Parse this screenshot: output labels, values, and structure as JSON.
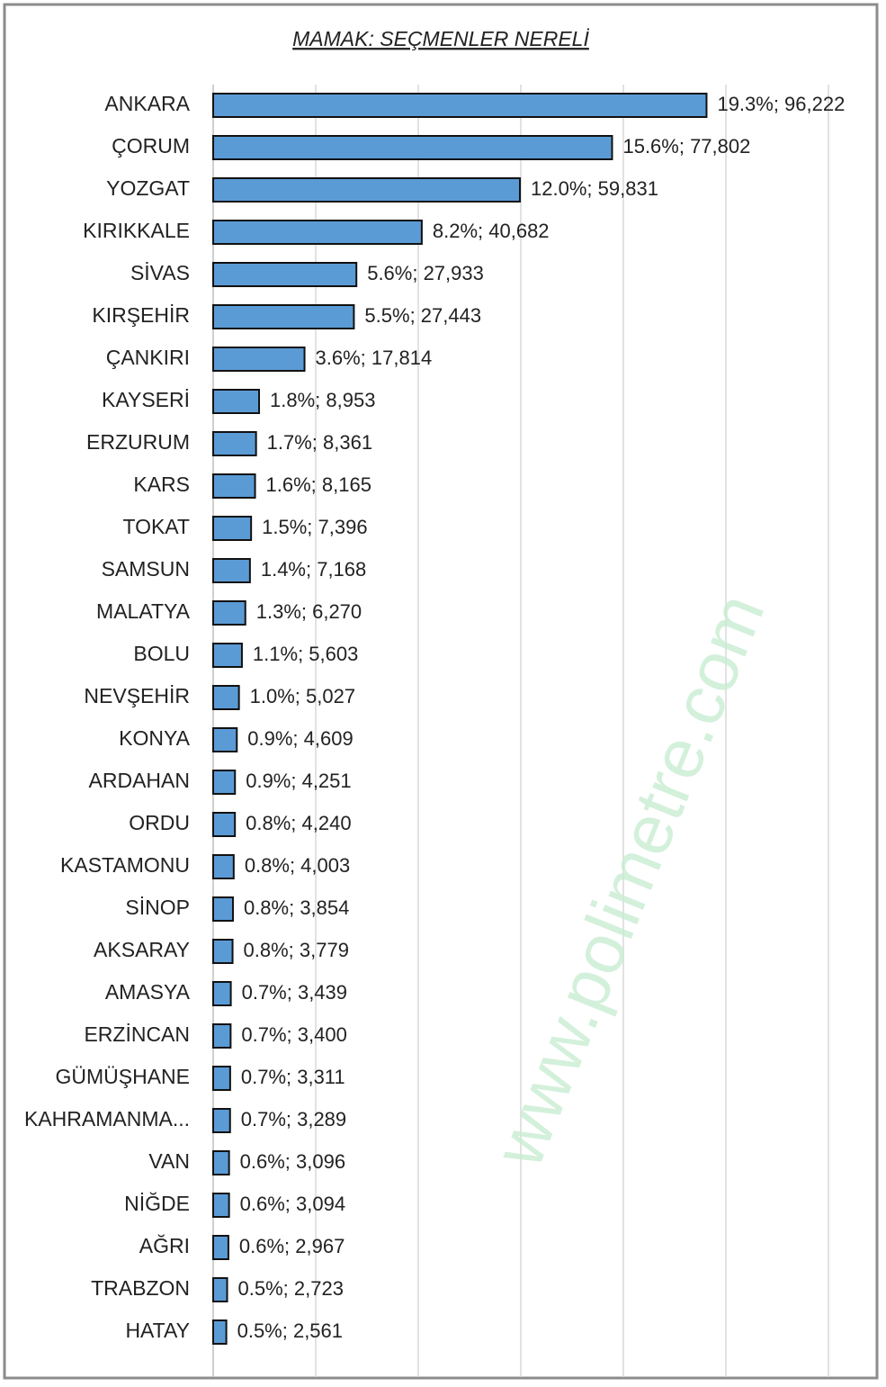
{
  "chart_data": {
    "type": "barh",
    "title": "MAMAK: SEÇMENLER NERELİ",
    "watermark": "www.polimetre.com",
    "categories": [
      "ANKARA",
      "ÇORUM",
      "YOZGAT",
      "KIRIKKALE",
      "SİVAS",
      "KIRŞEHİR",
      "ÇANKIRI",
      "KAYSERİ",
      "ERZURUM",
      "KARS",
      "TOKAT",
      "SAMSUN",
      "MALATYA",
      "BOLU",
      "NEVŞEHİR",
      "KONYA",
      "ARDAHAN",
      "ORDU",
      "KASTAMONU",
      "SİNOP",
      "AKSARAY",
      "AMASYA",
      "ERZİNCAN",
      "GÜMÜŞHANE",
      "KAHRAMANMA...",
      "VAN",
      "NİĞDE",
      "AĞRI",
      "TRABZON",
      "HATAY"
    ],
    "values": [
      96222,
      77802,
      59831,
      40682,
      27933,
      27443,
      17814,
      8953,
      8361,
      8165,
      7396,
      7168,
      6270,
      5603,
      5027,
      4609,
      4251,
      4240,
      4003,
      3854,
      3779,
      3439,
      3400,
      3311,
      3289,
      3096,
      3094,
      2967,
      2723,
      2561
    ],
    "value_labels": [
      "19.3%; 96,222",
      "15.6%; 77,802",
      "12.0%; 59,831",
      "8.2%; 40,682",
      "5.6%; 27,933",
      "5.5%; 27,443",
      "3.6%; 17,814",
      "1.8%; 8,953",
      "1.7%; 8,361",
      "1.6%; 8,165",
      "1.5%; 7,396",
      "1.4%; 7,168",
      "1.3%; 6,270",
      "1.1%; 5,603",
      "1.0%; 5,027",
      "0.9%; 4,609",
      "0.9%; 4,251",
      "0.8%; 4,240",
      "0.8%; 4,003",
      "0.8%; 3,854",
      "0.8%; 3,779",
      "0.7%; 3,439",
      "0.7%; 3,400",
      "0.7%; 3,311",
      "0.7%; 3,289",
      "0.6%; 3,096",
      "0.6%; 3,094",
      "0.6%; 2,967",
      "0.5%; 2,723",
      "0.5%; 2,561"
    ],
    "color": "#5b9bd5",
    "xlim": [
      0,
      120000
    ],
    "xticks": [
      0,
      20000,
      40000,
      60000,
      80000,
      100000,
      120000
    ],
    "grid": true
  }
}
